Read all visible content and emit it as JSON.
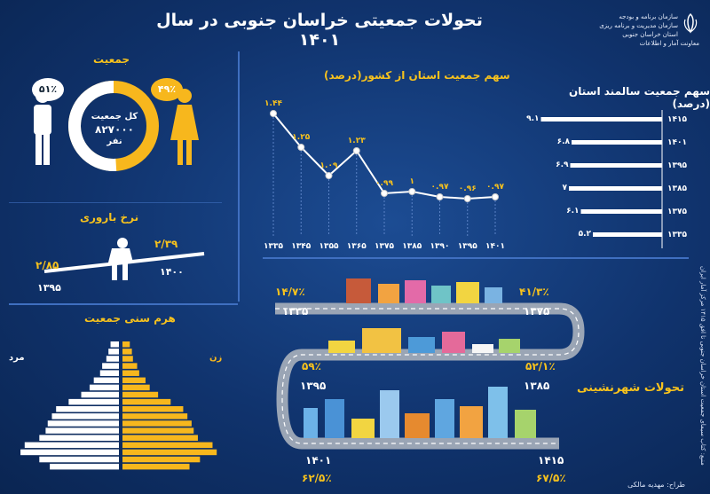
{
  "header": {
    "title": "تحولات جمعیتی خراسان جنوبی در سال ۱۴۰۱",
    "logo_lines": [
      "سازمان برنامه و بودجه",
      "سازمان مدیریت و برنامه ریزی استان خراسان جنوبی",
      "معاونت آمار و اطلاعات"
    ]
  },
  "population": {
    "title": "جمعیت",
    "total_label": "کل جمعیت",
    "total_value": "۸۲۷۰۰۰",
    "unit": "نفر",
    "male_pct": "۵۱٪",
    "female_pct": "۴۹٪",
    "male_share": 0.51,
    "female_share": 0.49,
    "colors": {
      "male": "#ffffff",
      "female": "#f7b71d"
    }
  },
  "fertility": {
    "title": "نرخ باروری",
    "old_value": "۲/۸۵",
    "old_year": "۱۳۹۵",
    "new_value": "۲/۳۹",
    "new_year": "۱۴۰۰"
  },
  "pyramid": {
    "title": "هرم سنی جمعیت",
    "male_label": "مرد",
    "female_label": "زن"
  },
  "urban": {
    "title": "تحولات شهرنشینی",
    "points": [
      {
        "year": "۱۳۳۵",
        "pct": "۱۴/۷٪"
      },
      {
        "year": "۱۳۷۵",
        "pct": "۴۱/۳٪"
      },
      {
        "year": "۱۳۹۵",
        "pct": "۵۹٪"
      },
      {
        "year": "۱۳۸۵",
        "pct": "۵۲/۱٪"
      },
      {
        "year": "۱۴۰۱",
        "pct": "۶۲/۵٪"
      },
      {
        "year": "۱۴۱۵",
        "pct": "۶۷/۵٪"
      }
    ]
  },
  "source": "منبع: کتاب سیمای جمعیت استان خراسان جنوبی تا افق ۱۴۱۵ مرکز آمار ایران",
  "designer": "طراح: مهدیه مالکی",
  "chart_data": [
    {
      "type": "line",
      "title": "سهم جمعیت استان از کشور(درصد)",
      "categories": [
        "۱۳۳۵",
        "۱۳۴۵",
        "۱۳۵۵",
        "۱۳۶۵",
        "۱۳۷۵",
        "۱۳۸۵",
        "۱۳۹۰",
        "۱۳۹۵",
        "۱۴۰۱"
      ],
      "values": [
        1.44,
        1.25,
        1.09,
        1.23,
        0.99,
        1,
        0.97,
        0.96,
        0.97
      ],
      "labels": [
        "۱.۴۴",
        "۱.۲۵",
        "۱.۰۹",
        "۱.۲۳",
        "۰.۹۹",
        "۱",
        "۰.۹۷",
        "۰.۹۶",
        "۰.۹۷"
      ],
      "ylim": [
        0.85,
        1.5
      ],
      "color": "#ffffff"
    },
    {
      "type": "bar",
      "orientation": "horizontal",
      "title": "سهم جمعیت سالمند استان (درصد)",
      "categories": [
        "۱۴۱۵",
        "۱۴۰۱",
        "۱۳۹۵",
        "۱۳۸۵",
        "۱۳۷۵",
        "۱۳۳۵"
      ],
      "values": [
        9.1,
        6.8,
        6.9,
        7,
        6.1,
        5.2
      ],
      "labels": [
        "۹.۱",
        "۶.۸",
        "۶.۹",
        "۷",
        "۶.۱",
        "۵.۲"
      ],
      "xlim": [
        0,
        10
      ],
      "color": "#ffffff"
    },
    {
      "type": "bar",
      "orientation": "pyramid",
      "male": [
        33000,
        38000,
        47000,
        45000,
        38000,
        35000,
        34000,
        32000,
        30000,
        24000,
        18000,
        14000,
        12000,
        9000,
        8000,
        6000,
        5000,
        4000
      ],
      "female": [
        32000,
        37000,
        45000,
        43000,
        36000,
        34000,
        33000,
        31000,
        29000,
        23000,
        17000,
        13000,
        11000,
        8000,
        7000,
        5000,
        4500,
        3500
      ],
      "colors": {
        "male": "#ffffff",
        "female": "#f7b71d"
      }
    }
  ]
}
